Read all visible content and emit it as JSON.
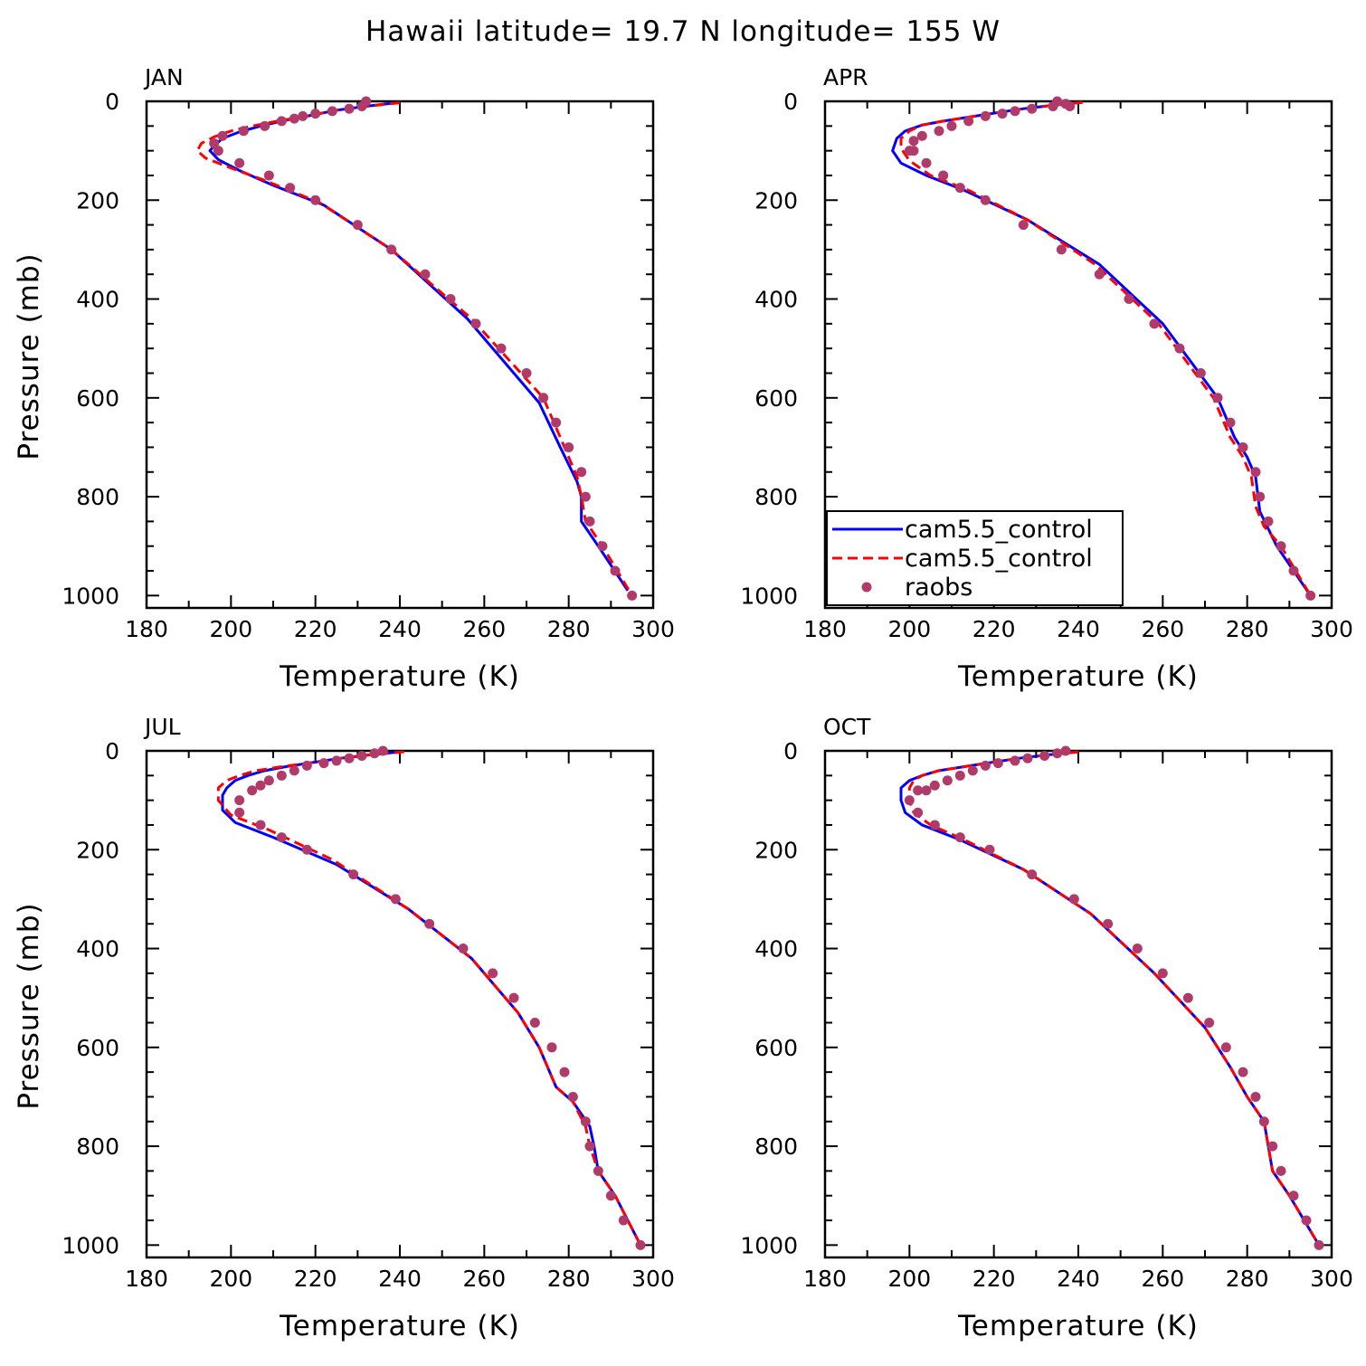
{
  "figure": {
    "title": "Hawaii  latitude= 19.7 N longitude= 155 W"
  },
  "colors": {
    "series1": "#0000ff",
    "series2": "#ff0000",
    "obs": "#b03a6a"
  },
  "chart_data": [
    {
      "type": "line",
      "panel_title": "JAN",
      "xlabel": "Temperature (K)",
      "ylabel": "Pressure (mb)",
      "xlim": [
        180,
        300
      ],
      "ylim": [
        1025,
        0
      ],
      "xticks": [
        180,
        200,
        220,
        240,
        260,
        280,
        300
      ],
      "yticks": [
        0,
        200,
        400,
        600,
        800,
        1000
      ],
      "legend": false,
      "series": [
        {
          "name": "cam5.5_control",
          "style": "solid",
          "color": "#0000ff",
          "x": [
            239,
            232,
            225,
            218,
            212,
            207,
            202,
            198,
            196,
            195,
            197,
            202,
            210,
            222,
            238,
            256,
            273,
            278,
            282,
            283,
            283,
            287,
            294
          ],
          "y": [
            3,
            10,
            18,
            30,
            40,
            50,
            62,
            75,
            90,
            100,
            118,
            140,
            170,
            210,
            300,
            440,
            610,
            700,
            770,
            800,
            850,
            900,
            990
          ]
        },
        {
          "name": "cam5.5_control",
          "style": "dashed",
          "color": "#ff0000",
          "x": [
            240,
            232,
            225,
            218,
            211,
            205,
            200,
            196,
            193,
            192,
            194,
            200,
            208,
            221,
            238,
            257,
            274,
            279,
            282,
            283,
            284,
            288,
            295
          ],
          "y": [
            3,
            10,
            18,
            30,
            40,
            50,
            60,
            72,
            85,
            100,
            115,
            135,
            160,
            205,
            300,
            440,
            600,
            700,
            760,
            800,
            850,
            900,
            1000
          ]
        }
      ],
      "points": {
        "name": "raobs",
        "x": [
          232,
          231,
          228,
          224,
          220,
          217,
          215,
          212,
          208,
          203,
          198,
          196,
          197,
          202,
          209,
          214,
          220,
          230,
          238,
          246,
          252,
          258,
          264,
          270,
          274,
          277,
          280,
          283,
          284,
          285,
          288,
          291,
          295
        ],
        "y": [
          0,
          10,
          15,
          20,
          25,
          30,
          35,
          40,
          50,
          60,
          70,
          85,
          100,
          125,
          150,
          175,
          200,
          250,
          300,
          350,
          400,
          450,
          500,
          550,
          600,
          650,
          700,
          750,
          800,
          850,
          900,
          950,
          1000
        ]
      }
    },
    {
      "type": "line",
      "panel_title": "APR",
      "xlabel": "Temperature (K)",
      "ylabel": "",
      "xlim": [
        180,
        300
      ],
      "ylim": [
        1025,
        0
      ],
      "xticks": [
        180,
        200,
        220,
        240,
        260,
        280,
        300
      ],
      "yticks": [
        0,
        200,
        400,
        600,
        800,
        1000
      ],
      "legend": true,
      "series": [
        {
          "name": "cam5.5_control",
          "style": "solid",
          "color": "#0000ff",
          "x": [
            241,
            234,
            227,
            220,
            214,
            208,
            203,
            199,
            197,
            196,
            198,
            204,
            213,
            228,
            245,
            260,
            273,
            277,
            280,
            282,
            283,
            287,
            295
          ],
          "y": [
            2,
            8,
            15,
            24,
            32,
            40,
            48,
            60,
            75,
            100,
            125,
            150,
            180,
            240,
            330,
            450,
            600,
            680,
            720,
            760,
            830,
            900,
            1000
          ]
        },
        {
          "name": "cam5.5_control",
          "style": "dashed",
          "color": "#ff0000",
          "x": [
            241,
            234,
            227,
            220,
            214,
            208,
            203,
            200,
            198,
            198,
            200,
            205,
            214,
            228,
            244,
            259,
            272,
            276,
            279,
            281,
            282,
            284,
            288,
            295
          ],
          "y": [
            2,
            8,
            15,
            24,
            32,
            40,
            48,
            60,
            75,
            95,
            120,
            150,
            180,
            240,
            330,
            450,
            600,
            680,
            720,
            760,
            820,
            860,
            900,
            1000
          ]
        }
      ],
      "points": {
        "name": "raobs",
        "x": [
          235,
          237,
          238,
          234,
          229,
          225,
          222,
          218,
          214,
          210,
          207,
          203,
          201,
          200,
          201,
          204,
          208,
          212,
          218,
          227,
          236,
          245,
          252,
          258,
          264,
          269,
          273,
          276,
          279,
          282,
          283,
          285,
          288,
          291,
          295
        ],
        "y": [
          0,
          5,
          10,
          10,
          15,
          20,
          25,
          30,
          40,
          50,
          60,
          70,
          80,
          100,
          100,
          125,
          150,
          175,
          200,
          250,
          300,
          350,
          400,
          450,
          500,
          550,
          600,
          650,
          700,
          750,
          800,
          850,
          900,
          950,
          1000
        ]
      },
      "legend_entries": [
        {
          "label": "cam5.5_control",
          "style": "solid",
          "color": "#0000ff"
        },
        {
          "label": "cam5.5_control",
          "style": "dashed",
          "color": "#ff0000"
        },
        {
          "label": "raobs",
          "style": "dot",
          "color": "#b03a6a"
        }
      ]
    },
    {
      "type": "line",
      "panel_title": "JUL",
      "xlabel": "Temperature (K)",
      "ylabel": "Pressure (mb)",
      "xlim": [
        180,
        300
      ],
      "ylim": [
        1025,
        0
      ],
      "xticks": [
        180,
        200,
        220,
        240,
        260,
        280,
        300
      ],
      "yticks": [
        0,
        200,
        400,
        600,
        800,
        1000
      ],
      "legend": false,
      "series": [
        {
          "name": "cam5.5_control",
          "style": "solid",
          "color": "#0000ff",
          "x": [
            240,
            233,
            226,
            219,
            213,
            208,
            204,
            201,
            199,
            198,
            198,
            201,
            210,
            225,
            242,
            257,
            268,
            273,
            277,
            281,
            285,
            286,
            287,
            291,
            297
          ],
          "y": [
            2,
            8,
            15,
            24,
            32,
            40,
            50,
            60,
            75,
            90,
            120,
            145,
            175,
            230,
            320,
            420,
            530,
            600,
            680,
            710,
            760,
            800,
            850,
            900,
            1000
          ]
        },
        {
          "name": "cam5.5_control",
          "style": "dashed",
          "color": "#ff0000",
          "x": [
            241,
            233,
            226,
            219,
            212,
            206,
            202,
            199,
            197,
            197,
            200,
            209,
            224,
            242,
            257,
            268,
            273,
            277,
            281,
            284,
            285,
            287,
            291,
            297
          ],
          "y": [
            2,
            8,
            15,
            24,
            32,
            40,
            50,
            60,
            75,
            100,
            130,
            160,
            220,
            320,
            420,
            530,
            600,
            680,
            710,
            760,
            800,
            850,
            900,
            1000
          ]
        }
      ],
      "points": {
        "name": "raobs",
        "x": [
          236,
          234,
          231,
          228,
          225,
          222,
          218,
          215,
          212,
          209,
          207,
          205,
          202,
          202,
          207,
          212,
          218,
          229,
          239,
          247,
          255,
          262,
          267,
          272,
          276,
          279,
          281,
          284,
          285,
          287,
          290,
          293,
          297
        ],
        "y": [
          0,
          5,
          10,
          15,
          20,
          25,
          30,
          40,
          50,
          60,
          70,
          80,
          100,
          125,
          150,
          175,
          200,
          250,
          300,
          350,
          400,
          450,
          500,
          550,
          600,
          650,
          700,
          750,
          800,
          850,
          900,
          950,
          1000
        ]
      }
    },
    {
      "type": "line",
      "panel_title": "OCT",
      "xlabel": "Temperature (K)",
      "ylabel": "",
      "xlim": [
        180,
        300
      ],
      "ylim": [
        1025,
        0
      ],
      "xticks": [
        180,
        200,
        220,
        240,
        260,
        280,
        300
      ],
      "yticks": [
        0,
        200,
        400,
        600,
        800,
        1000
      ],
      "legend": false,
      "series": [
        {
          "name": "cam5.5_control",
          "style": "solid",
          "color": "#0000ff",
          "x": [
            240,
            233,
            226,
            219,
            213,
            207,
            203,
            200,
            198,
            198,
            199,
            203,
            212,
            227,
            243,
            258,
            270,
            276,
            280,
            284,
            285,
            286,
            290,
            297
          ],
          "y": [
            2,
            8,
            15,
            24,
            32,
            40,
            50,
            60,
            75,
            100,
            125,
            150,
            180,
            240,
            330,
            450,
            560,
            640,
            700,
            750,
            800,
            850,
            900,
            1000
          ]
        },
        {
          "name": "cam5.5_control",
          "style": "dashed",
          "color": "#ff0000",
          "x": [
            240,
            233,
            226,
            219,
            213,
            207,
            203,
            201,
            200,
            200,
            201,
            205,
            213,
            227,
            243,
            258,
            270,
            276,
            280,
            284,
            285,
            286,
            290,
            297
          ],
          "y": [
            2,
            8,
            15,
            24,
            32,
            40,
            50,
            60,
            75,
            100,
            125,
            150,
            180,
            240,
            330,
            450,
            560,
            640,
            700,
            750,
            800,
            850,
            900,
            1000
          ]
        }
      ],
      "points": {
        "name": "raobs",
        "x": [
          237,
          235,
          232,
          228,
          225,
          221,
          218,
          215,
          212,
          209,
          206,
          204,
          202,
          200,
          202,
          206,
          212,
          219,
          229,
          239,
          247,
          254,
          260,
          266,
          271,
          275,
          279,
          282,
          284,
          286,
          288,
          291,
          294,
          297
        ],
        "y": [
          0,
          5,
          10,
          15,
          20,
          25,
          30,
          40,
          50,
          60,
          70,
          80,
          80,
          100,
          125,
          150,
          175,
          200,
          250,
          300,
          350,
          400,
          450,
          500,
          550,
          600,
          650,
          700,
          750,
          800,
          850,
          900,
          950,
          1000
        ]
      }
    }
  ]
}
